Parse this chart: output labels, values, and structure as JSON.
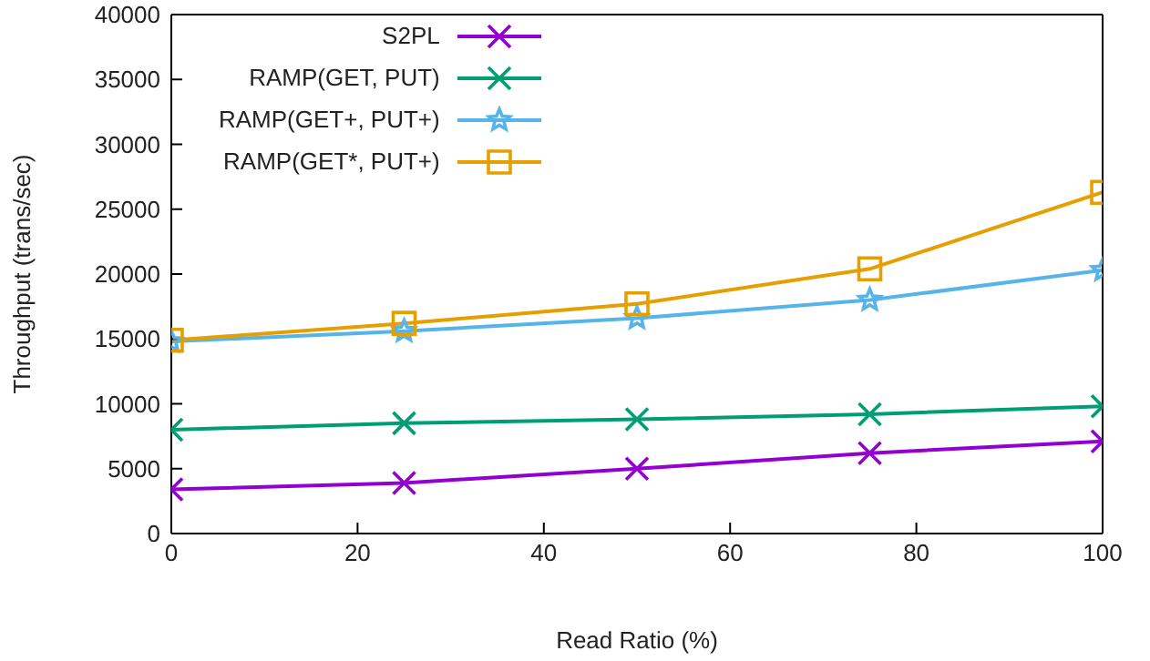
{
  "chart_data": {
    "type": "line",
    "xlabel": "Read Ratio (%)",
    "ylabel": "Throughput (trans/sec)",
    "x": [
      0,
      25,
      50,
      75,
      100
    ],
    "xlim": [
      0,
      100
    ],
    "xticks": [
      0,
      20,
      40,
      60,
      80,
      100
    ],
    "ylim": [
      0,
      40000
    ],
    "yticks": [
      0,
      5000,
      10000,
      15000,
      20000,
      25000,
      30000,
      35000,
      40000
    ],
    "legend": "top left",
    "line_style": "solid",
    "series": [
      {
        "name": "S2PL",
        "color": "#9400d3",
        "marker": "cross",
        "values": [
          3400,
          3900,
          5000,
          6200,
          7100
        ]
      },
      {
        "name": "RAMP(GET, PUT)",
        "color": "#009e73",
        "marker": "cross",
        "values": [
          8000,
          8500,
          8800,
          9200,
          9800
        ]
      },
      {
        "name": "RAMP(GET+, PUT+)",
        "color": "#56b4e9",
        "marker": "star",
        "values": [
          14800,
          15600,
          16600,
          18000,
          20300
        ]
      },
      {
        "name": "RAMP(GET*, PUT+)",
        "color": "#e69f00",
        "marker": "square",
        "values": [
          14900,
          16200,
          17700,
          20400,
          26300
        ]
      }
    ]
  }
}
